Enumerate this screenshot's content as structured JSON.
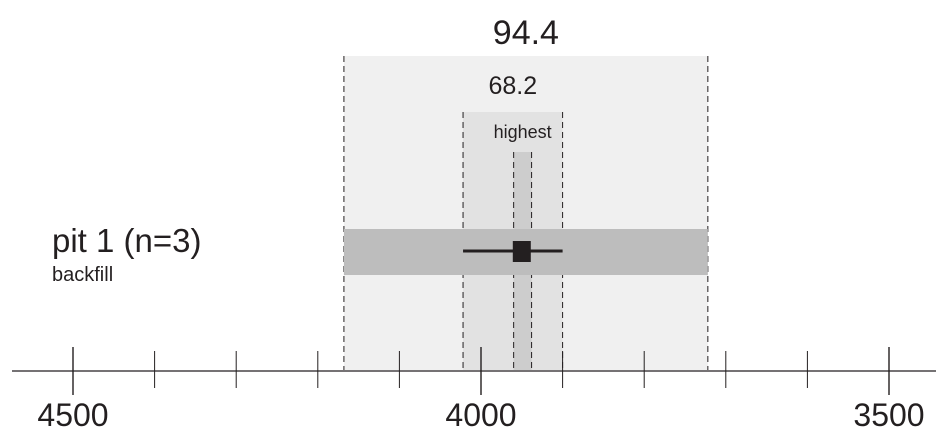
{
  "chart_data": {
    "type": "range",
    "axis": {
      "reversed": true,
      "tick_labels": [
        "4500",
        "4000",
        "3500"
      ],
      "major_ticks": [
        4500,
        4000,
        3500
      ],
      "minor_ticks": [
        4400,
        4300,
        4200,
        4100,
        3900,
        3800,
        3700,
        3600
      ],
      "range": [
        4580,
        3470
      ]
    },
    "bands": [
      {
        "label": "94.4",
        "start": 4168,
        "end": 3722
      },
      {
        "label": "68.2",
        "start": 4022,
        "end": 3900
      },
      {
        "label": "highest",
        "start": 3960,
        "end": 3938
      }
    ],
    "row": {
      "title": "pit 1 (n=3)",
      "subtitle": "backfill",
      "bar": {
        "start": 4168,
        "end": 3722
      },
      "point": 3950,
      "whisker": [
        4022,
        3900
      ]
    },
    "colors": {
      "outer_band": "#f0f0f0",
      "inner_band": "#e2e2e2",
      "highest_band": "#cdcdcd",
      "row_bar": "#bdbdbd",
      "ink": "#231f20"
    }
  }
}
